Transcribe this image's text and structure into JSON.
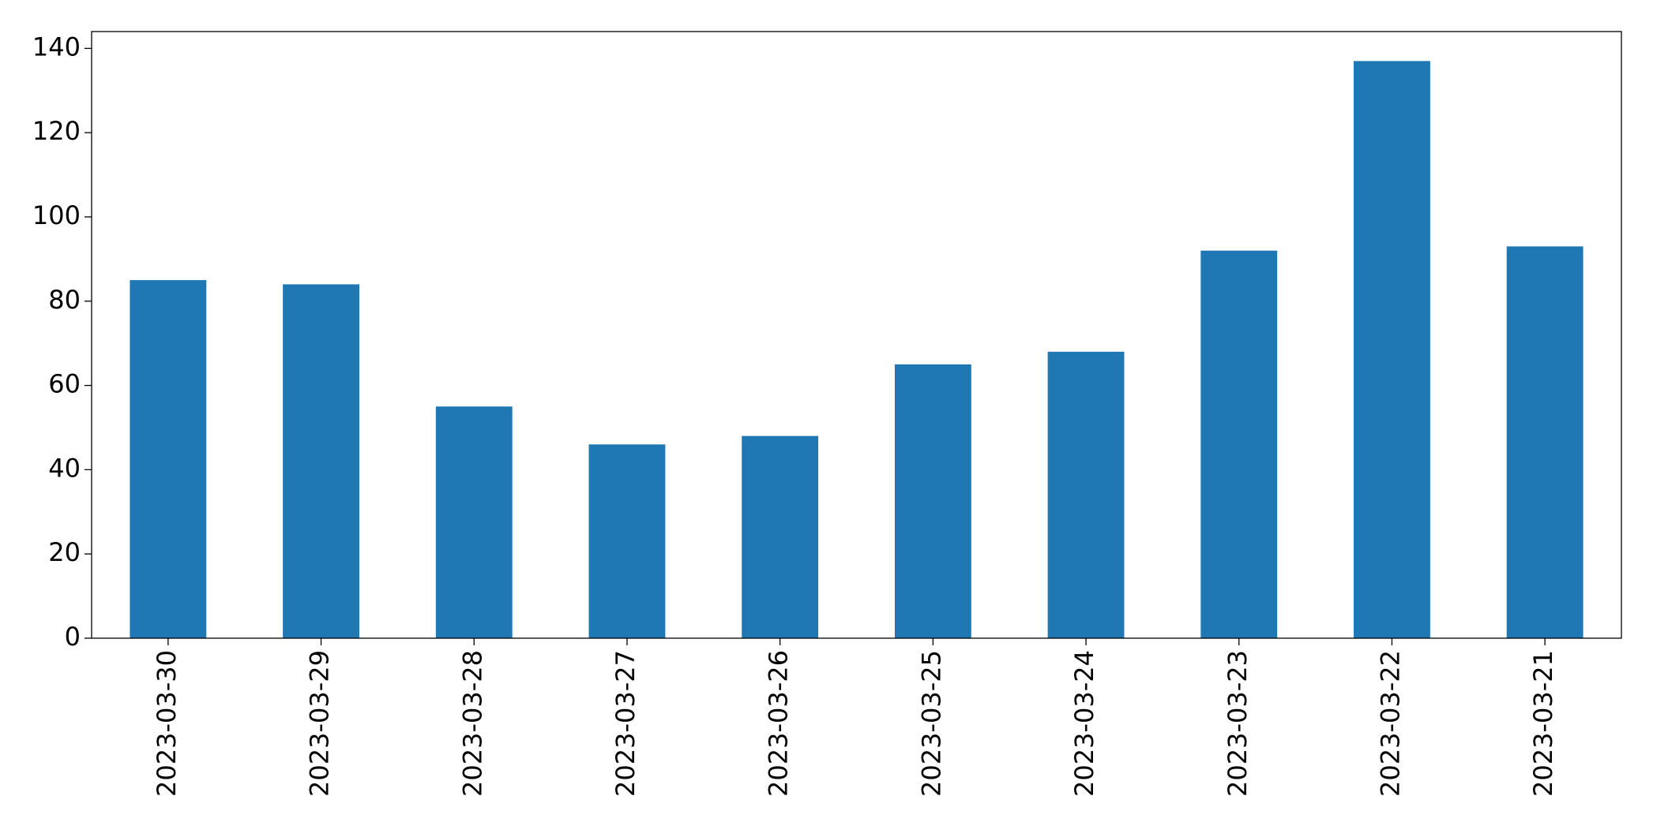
{
  "chart_data": {
    "type": "bar",
    "categories": [
      "2023-03-30",
      "2023-03-29",
      "2023-03-28",
      "2023-03-27",
      "2023-03-26",
      "2023-03-25",
      "2023-03-24",
      "2023-03-23",
      "2023-03-22",
      "2023-03-21"
    ],
    "values": [
      85,
      84,
      55,
      46,
      48,
      65,
      68,
      92,
      137,
      93
    ],
    "color": "#1f77b4",
    "ylim": [
      0,
      144
    ],
    "yticks": [
      0,
      20,
      40,
      60,
      80,
      100,
      120,
      140
    ],
    "grid": false
  }
}
